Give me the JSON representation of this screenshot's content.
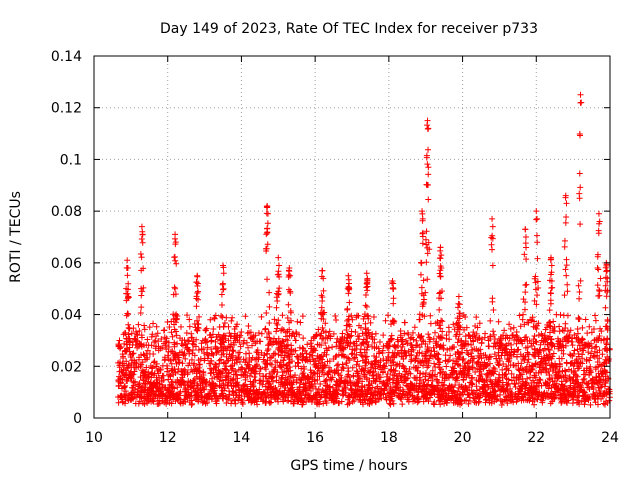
{
  "chart_data": {
    "type": "scatter",
    "title": "Day 149 of 2023, Rate Of TEC Index for receiver p733",
    "xlabel": "GPS time / hours",
    "ylabel": "ROTI / TECUs",
    "xlim": [
      10,
      24
    ],
    "ylim": [
      0,
      0.14
    ],
    "x_ticks": [
      "10",
      "12",
      "14",
      "16",
      "18",
      "20",
      "22",
      "24"
    ],
    "y_ticks": [
      "0",
      "0.02",
      "0.04",
      "0.06",
      "0.08",
      "0.1",
      "0.12",
      "0.14"
    ],
    "grid": true,
    "marker": "plus",
    "series_color": "#ff0000",
    "series": [
      {
        "name": "p733",
        "x_start": 10.65,
        "x_end": 24.0,
        "baseline_range": [
          0.005,
          0.03
        ],
        "clusters": [
          {
            "x": 10.9,
            "y_max": 0.061
          },
          {
            "x": 11.3,
            "y_max": 0.074
          },
          {
            "x": 12.2,
            "y_max": 0.071
          },
          {
            "x": 12.8,
            "y_max": 0.055
          },
          {
            "x": 13.5,
            "y_max": 0.059
          },
          {
            "x": 14.7,
            "y_max": 0.082
          },
          {
            "x": 15.0,
            "y_max": 0.062
          },
          {
            "x": 15.3,
            "y_max": 0.058
          },
          {
            "x": 16.2,
            "y_max": 0.057
          },
          {
            "x": 16.9,
            "y_max": 0.055
          },
          {
            "x": 17.4,
            "y_max": 0.056
          },
          {
            "x": 18.1,
            "y_max": 0.053
          },
          {
            "x": 18.9,
            "y_max": 0.08
          },
          {
            "x": 19.05,
            "y_max": 0.115
          },
          {
            "x": 19.4,
            "y_max": 0.066
          },
          {
            "x": 19.9,
            "y_max": 0.047
          },
          {
            "x": 20.8,
            "y_max": 0.077
          },
          {
            "x": 21.7,
            "y_max": 0.073
          },
          {
            "x": 22.0,
            "y_max": 0.08
          },
          {
            "x": 22.4,
            "y_max": 0.062
          },
          {
            "x": 22.8,
            "y_max": 0.086
          },
          {
            "x": 23.2,
            "y_max": 0.125
          },
          {
            "x": 23.7,
            "y_max": 0.079
          },
          {
            "x": 23.9,
            "y_max": 0.06
          }
        ]
      }
    ]
  }
}
